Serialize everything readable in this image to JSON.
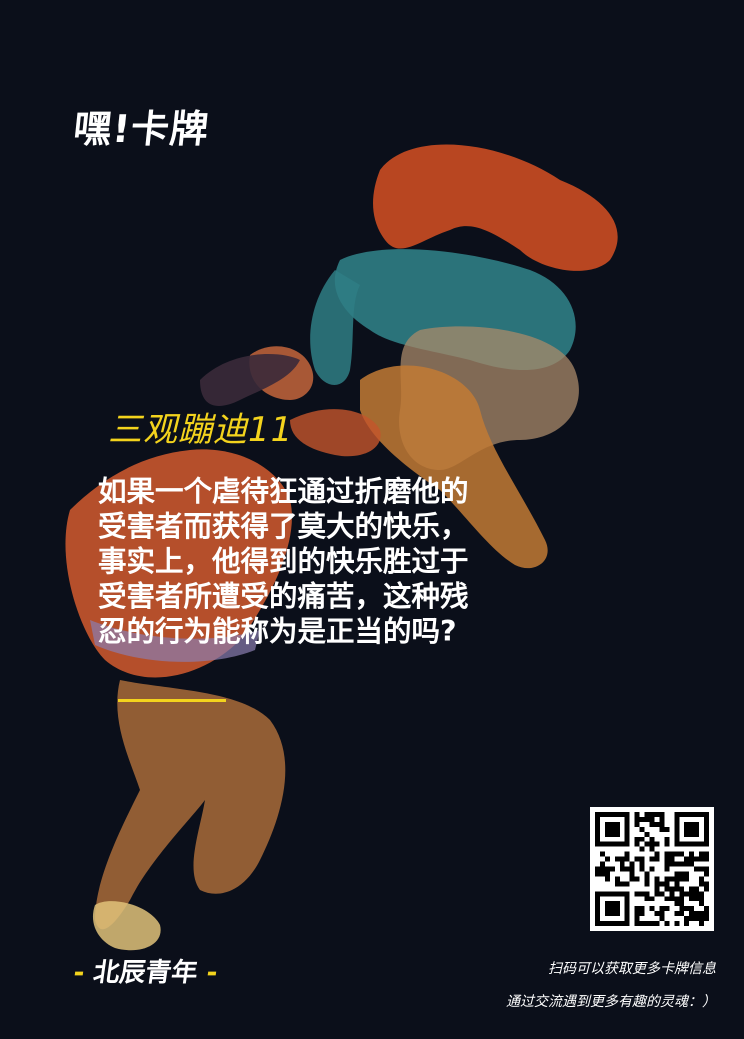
{
  "brand": {
    "logo_text": "嘿!卡牌"
  },
  "card": {
    "title": "三观蹦迪11",
    "question_lines": [
      "如果一个虐待狂通过折磨他的",
      "受害者而获得了莫大的快乐，",
      "事实上，他得到的快乐胜过于",
      "受害者所遭受的痛苦，这种残",
      "忍的行为能称为是正当的吗?"
    ]
  },
  "footer": {
    "org_dash_left": "-",
    "org_name": "北辰青年",
    "org_dash_right": "-",
    "scan_text": "扫码可以获取更多卡牌信息",
    "community_text": "通过交流遇到更多有趣的灵魂：）"
  },
  "colors": {
    "background": "#0b0f1a",
    "accent": "#f3d31d",
    "text": "#ffffff"
  }
}
